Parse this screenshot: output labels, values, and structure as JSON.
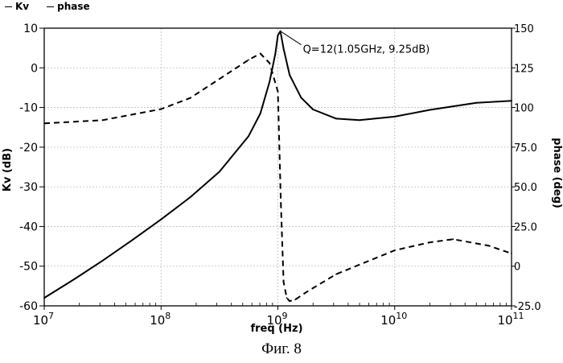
{
  "chart_data": {
    "type": "line",
    "title": "",
    "xlabel": "freq (Hz)",
    "ylabel": "Kv (dB)",
    "y2label": "phase (deg)",
    "xscale": "log",
    "xlim": [
      10000000,
      100000000000
    ],
    "ylim": [
      -60,
      10
    ],
    "y2lim": [
      -25,
      150
    ],
    "grid": true,
    "legend_position": "top-left",
    "x_ticks": [
      {
        "base": "10",
        "exp": "7"
      },
      {
        "base": "10",
        "exp": "8"
      },
      {
        "base": "10",
        "exp": "9"
      },
      {
        "base": "10",
        "exp": "10"
      },
      {
        "base": "10",
        "exp": "11"
      }
    ],
    "y_ticks": [
      "10",
      "0",
      "-10",
      "-20",
      "-30",
      "-40",
      "-50",
      "-60"
    ],
    "y2_ticks": [
      "150",
      "125",
      "100",
      "75.0",
      "50.0",
      "25.0",
      "0",
      "-25.0"
    ],
    "series": [
      {
        "name": "Kv",
        "axis": "left",
        "style": "solid",
        "x": [
          10000000,
          17800000,
          31600000,
          56200000,
          100000000,
          178000000,
          316000000,
          562000000,
          708000000,
          850000000,
          950000000,
          1000000000,
          1050000000,
          1120000000,
          1260000000,
          1580000000,
          2000000000,
          3160000000,
          5000000000,
          10000000000,
          20000000000,
          50000000000,
          100000000000
        ],
        "values": [
          -58,
          -53.4,
          -48.6,
          -43.5,
          -38.2,
          -32.6,
          -26.2,
          -17.2,
          -11.5,
          -3.5,
          3.5,
          8.2,
          9.25,
          4.8,
          -1.8,
          -7.5,
          -10.5,
          -12.8,
          -13.2,
          -12.3,
          -10.6,
          -8.8,
          -8.3
        ]
      },
      {
        "name": "phase",
        "axis": "right",
        "style": "dashed",
        "x": [
          10000000,
          31600000,
          100000000,
          178000000,
          316000000,
          562000000,
          708000000,
          850000000,
          1000000000,
          1060000000,
          1120000000,
          1190000000,
          1260000000,
          1410000000,
          1780000000,
          3160000000,
          10000000000,
          20000000000,
          31600000000,
          63000000000,
          100000000000
        ],
        "values": [
          90,
          92,
          99,
          106,
          118,
          130,
          134,
          128,
          110,
          40,
          -10,
          -20,
          -22,
          -21,
          -16,
          -5,
          10,
          15,
          17,
          13,
          8
        ]
      }
    ],
    "annotations": [
      {
        "text": "Q=12(1.05GHz, 9.25dB)",
        "x": 1050000000,
        "y": 9.25,
        "axis": "left"
      }
    ]
  },
  "figure_caption": "Фиг. 8"
}
